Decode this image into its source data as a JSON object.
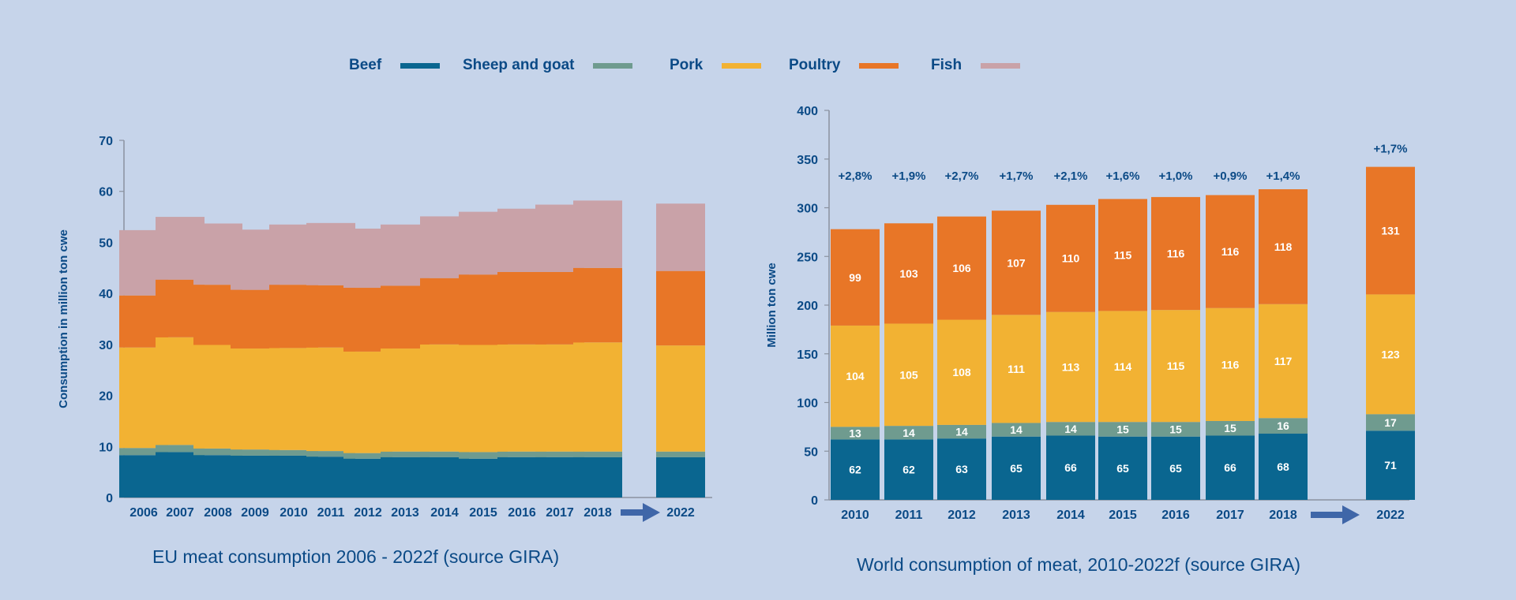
{
  "legend": [
    {
      "label": "Beef",
      "color": "#0a6690"
    },
    {
      "label": "Sheep and goat",
      "color": "#6f9b8f"
    },
    {
      "label": "Pork",
      "color": "#f2b233"
    },
    {
      "label": "Poultry",
      "color": "#e87627"
    },
    {
      "label": "Fish",
      "color": "#c9a2a8"
    }
  ],
  "colors": {
    "axis_text": "#0b4a86",
    "axis_line": "#8a92a0",
    "arrow": "#3f66a8",
    "bar_label": "#ffffff"
  },
  "chart_data": [
    {
      "type": "bar",
      "stacked": true,
      "title": "EU meat consumption 2006 - 2022f  (source GIRA)",
      "xlabel": "",
      "ylabel": "Consumption in million ton cwe",
      "ylim": [
        0,
        70
      ],
      "yticks": [
        0,
        10,
        20,
        30,
        40,
        50,
        60,
        70
      ],
      "categories": [
        "2006",
        "2007",
        "2008",
        "2009",
        "2010",
        "2011",
        "2012",
        "2013",
        "2014",
        "2015",
        "2016",
        "2017",
        "2018",
        "2022"
      ],
      "gap_before": "2022",
      "series": [
        {
          "name": "Beef",
          "values": [
            8.3,
            8.9,
            8.3,
            8.2,
            8.2,
            8.0,
            7.6,
            7.9,
            7.9,
            7.6,
            7.9,
            7.9,
            7.9,
            7.9
          ]
        },
        {
          "name": "Sheep and goat",
          "values": [
            1.4,
            1.4,
            1.3,
            1.2,
            1.1,
            1.1,
            1.1,
            1.1,
            1.1,
            1.3,
            1.1,
            1.1,
            1.1,
            1.1
          ]
        },
        {
          "name": "Pork",
          "values": [
            19.7,
            21.1,
            20.3,
            19.8,
            20.0,
            20.3,
            19.9,
            20.2,
            21.0,
            21.0,
            21.0,
            21.0,
            21.4,
            20.8
          ]
        },
        {
          "name": "Poultry",
          "values": [
            10.2,
            11.3,
            11.8,
            11.5,
            12.4,
            12.2,
            12.5,
            12.3,
            13.0,
            13.8,
            14.2,
            14.2,
            14.6,
            14.6
          ]
        },
        {
          "name": "Fish",
          "values": [
            12.8,
            12.3,
            12.0,
            11.8,
            11.8,
            12.2,
            11.6,
            12.0,
            12.1,
            12.3,
            12.4,
            13.2,
            13.2,
            13.2
          ]
        }
      ]
    },
    {
      "type": "bar",
      "stacked": true,
      "title": "World consumption of meat, 2010-2022f (source GIRA)",
      "xlabel": "",
      "ylabel": "Million ton cwe",
      "ylim": [
        0,
        400
      ],
      "yticks": [
        0,
        50,
        100,
        150,
        200,
        250,
        300,
        350,
        400
      ],
      "categories": [
        "2010",
        "2011",
        "2012",
        "2013",
        "2014",
        "2015",
        "2016",
        "2017",
        "2018",
        "2022"
      ],
      "gap_before": "2022",
      "series": [
        {
          "name": "Beef",
          "values": [
            62,
            62,
            63,
            65,
            66,
            65,
            65,
            66,
            68,
            71
          ],
          "labels": [
            "62",
            "62",
            "63",
            "65",
            "66",
            "65",
            "65",
            "66",
            "68",
            "71"
          ]
        },
        {
          "name": "Sheep and goat",
          "values": [
            13,
            14,
            14,
            14,
            14,
            15,
            15,
            15,
            16,
            17
          ],
          "labels": [
            "13",
            "14",
            "14",
            "14",
            "14",
            "15",
            "15",
            "15",
            "16",
            "17"
          ]
        },
        {
          "name": "Pork",
          "values": [
            104,
            105,
            108,
            111,
            113,
            114,
            115,
            116,
            117,
            123
          ],
          "labels": [
            "104",
            "105",
            "108",
            "111",
            "113",
            "114",
            "115",
            "116",
            "117",
            "123"
          ]
        },
        {
          "name": "Poultry",
          "values": [
            99,
            103,
            106,
            107,
            110,
            115,
            116,
            116,
            118,
            131
          ],
          "labels": [
            "99",
            "103",
            "106",
            "107",
            "110",
            "115",
            "116",
            "116",
            "118",
            "131"
          ]
        }
      ],
      "annotations": [
        "+2,8%",
        "+1,9%",
        "+2,7%",
        "+1,7%",
        "+2,1%",
        "+1,6%",
        "+1,0%",
        "+0,9%",
        "+1,4%",
        "+1,7%"
      ]
    }
  ]
}
